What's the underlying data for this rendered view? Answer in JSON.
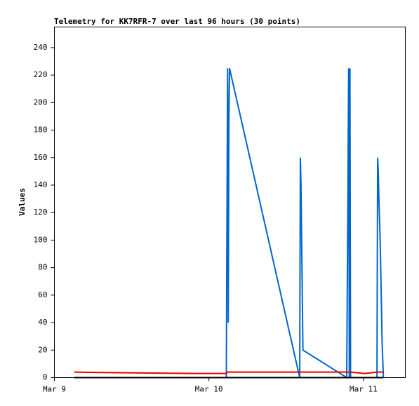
{
  "chart_data": {
    "type": "line",
    "title": "Telemetry for KK7RFR-7 over last 96 hours (30 points)",
    "y_label": "Values",
    "x": [
      3.1,
      11.0,
      21.6,
      26.7,
      26.9,
      27.0,
      27.1,
      27.2,
      38.1,
      38.2,
      38.3,
      38.4,
      38.5,
      38.6,
      45.4,
      45.6,
      45.7,
      45.8,
      45.9,
      46.0,
      48.2,
      50.1,
      50.2,
      50.3,
      50.4,
      50.5,
      50.6,
      50.7,
      50.9,
      51.1
    ],
    "series": [
      {
        "color": "#0066cc",
        "values": [
          0,
          0,
          0,
          0,
          225,
          40,
          187,
          225,
          0,
          160,
          140,
          100,
          60,
          20,
          0,
          145,
          225,
          0,
          225,
          0,
          0,
          0,
          160,
          150,
          130,
          115,
          98,
          75,
          25,
          0
        ]
      },
      {
        "color": "#000000",
        "values": [
          0,
          0,
          0,
          0,
          0,
          0,
          0,
          0,
          0,
          0,
          0,
          0,
          0,
          0,
          0,
          0,
          0,
          0,
          0,
          0,
          0,
          0,
          0,
          0,
          0,
          0,
          0,
          0,
          0,
          0
        ]
      },
      {
        "color": "#ee0000",
        "values": [
          4,
          3.5,
          3,
          3,
          4,
          4,
          4,
          4,
          4,
          4,
          4,
          4,
          4,
          4,
          4,
          4,
          4,
          4,
          4,
          4,
          3,
          4,
          4,
          4,
          4,
          4,
          4,
          4,
          4,
          4
        ]
      }
    ],
    "xlim": [
      0,
      54.5
    ],
    "xticks": [
      {
        "value": 0,
        "label": "Mar 9"
      },
      {
        "value": 24,
        "label": "Mar 10"
      },
      {
        "value": 48,
        "label": "Mar 11"
      }
    ],
    "ylim": [
      0,
      255
    ],
    "yticks": [
      0,
      20,
      40,
      60,
      80,
      100,
      120,
      140,
      160,
      180,
      200,
      220,
      240
    ],
    "grid": false
  }
}
